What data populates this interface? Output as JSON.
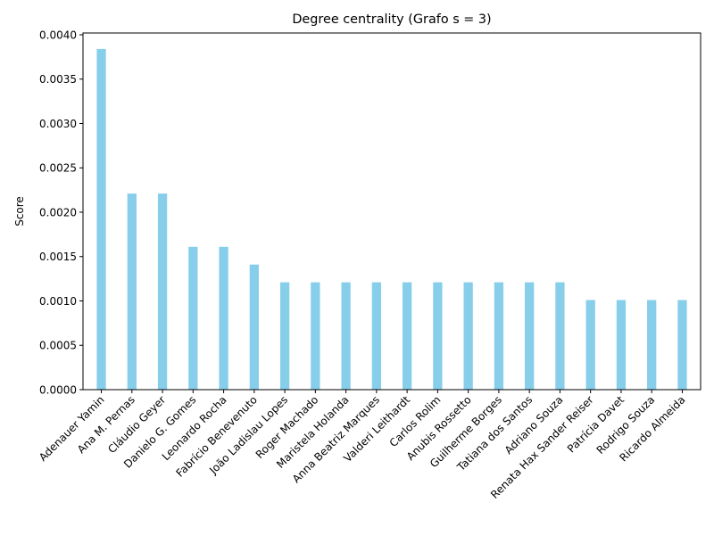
{
  "chart_data": {
    "type": "bar",
    "title": "Degree centrality (Grafo s = 3)",
    "xlabel": "",
    "ylabel": "Score",
    "ylim": [
      0,
      0.00402
    ],
    "yticks": [
      "0.0000",
      "0.0005",
      "0.0010",
      "0.0015",
      "0.0020",
      "0.0025",
      "0.0030",
      "0.0035",
      "0.0040"
    ],
    "bar_color": "#87ceeb",
    "grid": false,
    "categories": [
      "Adenauer Yamin",
      "Ana M. Pernas",
      "Cláudio Geyer",
      "Danielo G. Gomes",
      "Leonardo Rocha",
      "Fabrício Benevenuto",
      "João Ladislau Lopes",
      "Roger Machado",
      "Maristela Holanda",
      "Anna Beatriz Marques",
      "Valderi Leithardt",
      "Carlos Rolim",
      "Anubis Rossetto",
      "Guilherme Borges",
      "Tatiana dos Santos",
      "Adriano Souza",
      "Renata Hax Sander Reiser",
      "Patrícia Davet",
      "Rodrigo Souza",
      "Ricardo Almeida"
    ],
    "values": [
      0.00384,
      0.00221,
      0.00221,
      0.00161,
      0.00161,
      0.00141,
      0.00121,
      0.00121,
      0.00121,
      0.00121,
      0.00121,
      0.00121,
      0.00121,
      0.00121,
      0.00121,
      0.00121,
      0.00101,
      0.00101,
      0.00101,
      0.00101
    ]
  }
}
